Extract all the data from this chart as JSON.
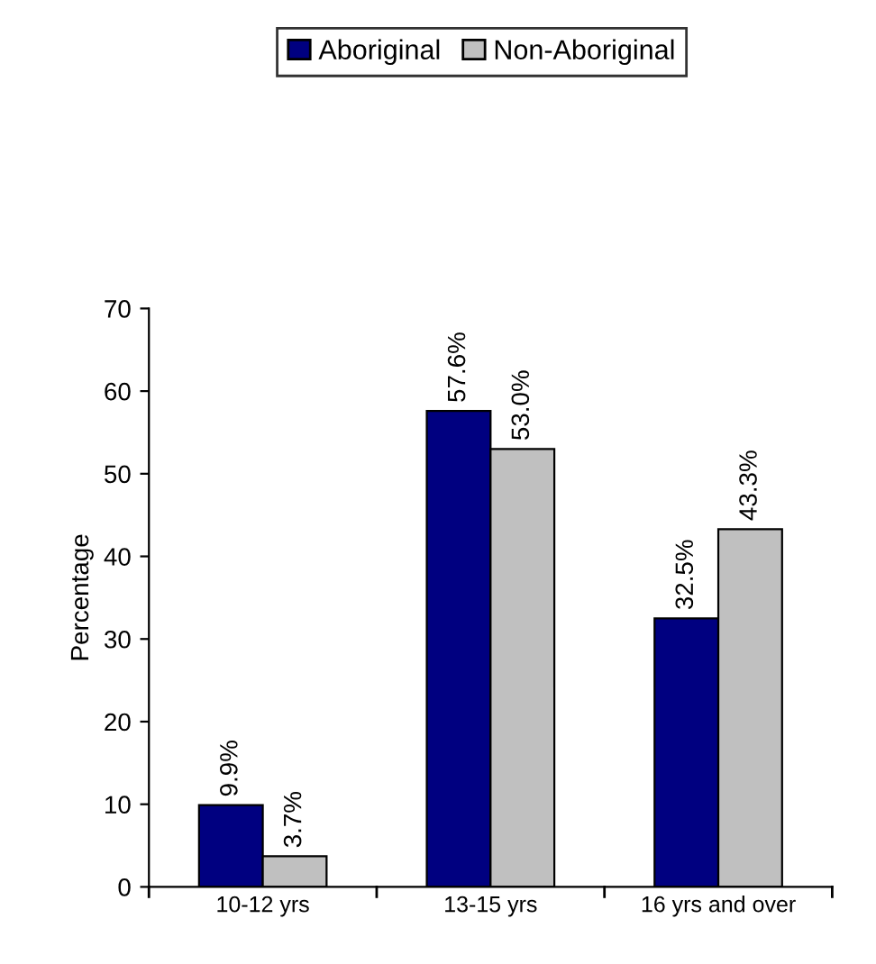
{
  "chart_data": {
    "type": "bar",
    "ylabel": "Percentage",
    "categories": [
      "10-12 yrs",
      "13-15 yrs",
      "16 yrs and over"
    ],
    "series": [
      {
        "name": "Aboriginal",
        "color": "#000080",
        "values": [
          9.9,
          57.6,
          32.5
        ],
        "value_labels": [
          "9.9%",
          "57.6%",
          "32.5%"
        ]
      },
      {
        "name": "Non-Aboriginal",
        "color": "#c0c0c0",
        "values": [
          3.7,
          53.0,
          43.3
        ],
        "value_labels": [
          "3.7%",
          "53.0%",
          "43.3%"
        ]
      }
    ],
    "ylim": [
      0,
      70
    ],
    "yticks": [
      0,
      10,
      20,
      30,
      40,
      50,
      60,
      70
    ],
    "grid": false,
    "legend": "top"
  }
}
